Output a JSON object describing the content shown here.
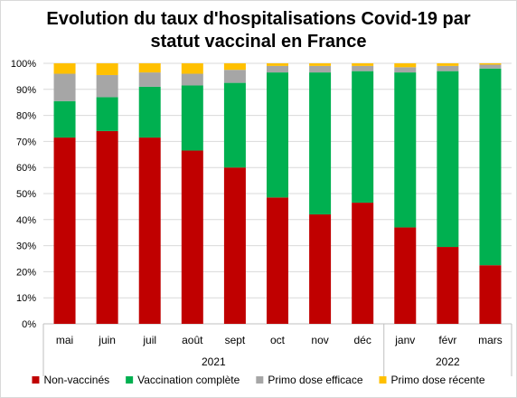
{
  "chart_data": {
    "type": "bar",
    "stacked": true,
    "title_lines": [
      "Evolution du taux d'hospitalisations Covid-19 par",
      "statut vaccinal en France"
    ],
    "categories": [
      "mai",
      "juin",
      "juil",
      "août",
      "sept",
      "oct",
      "nov",
      "déc",
      "janv",
      "févr",
      "mars"
    ],
    "category_groups": [
      {
        "label": "2021",
        "count": 8
      },
      {
        "label": "2022",
        "count": 3
      }
    ],
    "ylim": [
      0,
      100
    ],
    "yticks": [
      0,
      10,
      20,
      30,
      40,
      50,
      60,
      70,
      80,
      90,
      100
    ],
    "ytick_labels": [
      "0%",
      "10%",
      "20%",
      "30%",
      "40%",
      "50%",
      "60%",
      "70%",
      "80%",
      "90%",
      "100%"
    ],
    "grid": true,
    "legend_position": "bottom",
    "series": [
      {
        "name": "Non-vaccinés",
        "color": "#c00000",
        "values": [
          71.5,
          74,
          71.5,
          66.5,
          60,
          48.5,
          42,
          46.5,
          37,
          29.5,
          22.5
        ]
      },
      {
        "name": "Vaccination complète",
        "color": "#00b050",
        "values": [
          14,
          13,
          19.5,
          25,
          32.5,
          48,
          54.5,
          50.5,
          59.5,
          67.5,
          75.5
        ]
      },
      {
        "name": "Primo dose efficace",
        "color": "#a6a6a6",
        "values": [
          10.5,
          8.5,
          5.5,
          4.5,
          5,
          2.5,
          2.5,
          2,
          2,
          2,
          1.5
        ]
      },
      {
        "name": "Primo dose récente",
        "color": "#ffc000",
        "values": [
          4,
          4.5,
          3.5,
          4,
          2.5,
          1,
          1,
          1,
          1.5,
          1,
          0.5
        ]
      }
    ]
  }
}
